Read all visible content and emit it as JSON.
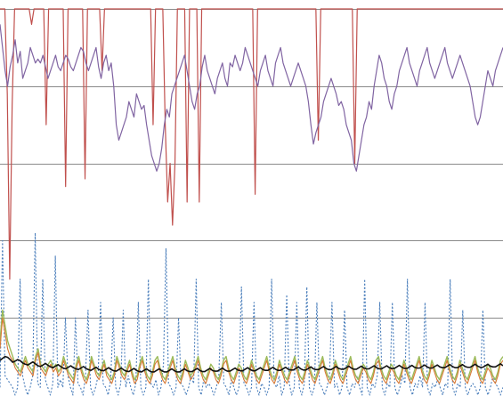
{
  "chart_data": {
    "type": "line",
    "grid": true,
    "x_count": 200,
    "ylim": [
      0,
      100
    ],
    "gridlines_y": [
      100,
      80,
      60,
      40,
      20
    ],
    "series": [
      {
        "key": "red",
        "color": "#c0504d",
        "width": 1.2,
        "dash": "",
        "values": [
          100,
          100,
          100,
          78,
          30,
          75,
          100,
          100,
          100,
          100,
          100,
          100,
          100,
          96,
          100,
          100,
          100,
          100,
          100,
          70,
          100,
          100,
          100,
          100,
          100,
          100,
          100,
          54,
          100,
          100,
          100,
          100,
          100,
          100,
          100,
          56,
          100,
          100,
          100,
          100,
          100,
          100,
          84,
          100,
          100,
          100,
          100,
          100,
          100,
          100,
          100,
          100,
          100,
          100,
          100,
          100,
          100,
          100,
          100,
          100,
          100,
          100,
          100,
          70,
          100,
          100,
          100,
          100,
          70,
          50,
          60,
          44,
          60,
          100,
          100,
          100,
          100,
          50,
          100,
          100,
          100,
          100,
          50,
          100,
          100,
          100,
          100,
          100,
          100,
          100,
          100,
          100,
          100,
          100,
          100,
          100,
          100,
          100,
          100,
          100,
          100,
          100,
          100,
          100,
          100,
          52,
          100,
          100,
          100,
          100,
          100,
          100,
          100,
          100,
          100,
          100,
          100,
          100,
          100,
          100,
          100,
          100,
          100,
          100,
          100,
          100,
          100,
          100,
          100,
          100,
          100,
          66,
          100,
          100,
          100,
          100,
          100,
          100,
          100,
          100,
          100,
          100,
          100,
          100,
          100,
          100,
          60,
          100,
          100,
          100,
          100,
          100,
          100,
          100,
          100,
          100,
          100,
          100,
          100,
          100,
          100,
          100,
          100,
          100,
          100,
          100,
          100,
          100,
          100,
          100,
          100,
          100,
          100,
          100,
          100,
          100,
          100,
          100,
          100,
          100,
          100,
          100,
          100,
          100,
          100,
          100,
          100,
          100,
          100,
          100,
          100,
          100,
          100,
          100,
          100,
          100,
          100,
          100,
          100,
          100,
          100,
          100,
          100,
          100,
          100,
          100,
          100,
          100
        ]
      },
      {
        "key": "purple",
        "color": "#8064a2",
        "width": 1.2,
        "dash": "",
        "values": [
          96,
          90,
          84,
          80,
          85,
          88,
          92,
          86,
          89,
          82,
          84,
          86,
          90,
          88,
          86,
          87,
          86,
          88,
          85,
          82,
          84,
          86,
          88,
          85,
          84,
          86,
          88,
          87,
          85,
          84,
          86,
          88,
          90,
          89,
          86,
          84,
          86,
          88,
          90,
          85,
          82,
          86,
          88,
          84,
          86,
          80,
          70,
          66,
          68,
          70,
          72,
          76,
          74,
          72,
          78,
          76,
          74,
          75,
          70,
          66,
          62,
          60,
          58,
          60,
          64,
          70,
          74,
          72,
          78,
          80,
          82,
          84,
          86,
          88,
          84,
          80,
          76,
          74,
          78,
          80,
          85,
          88,
          84,
          82,
          80,
          78,
          82,
          84,
          86,
          82,
          80,
          86,
          85,
          88,
          86,
          84,
          86,
          90,
          88,
          86,
          84,
          82,
          80,
          84,
          86,
          88,
          84,
          82,
          80,
          86,
          88,
          90,
          86,
          84,
          82,
          80,
          82,
          84,
          86,
          84,
          82,
          80,
          76,
          70,
          65,
          68,
          70,
          72,
          76,
          78,
          80,
          82,
          80,
          78,
          75,
          76,
          74,
          70,
          68,
          66,
          60,
          58,
          62,
          66,
          70,
          72,
          76,
          74,
          80,
          84,
          88,
          86,
          82,
          80,
          76,
          74,
          78,
          80,
          84,
          86,
          88,
          90,
          86,
          84,
          82,
          80,
          84,
          86,
          88,
          90,
          86,
          84,
          82,
          84,
          86,
          88,
          90,
          86,
          84,
          82,
          84,
          86,
          88,
          86,
          84,
          82,
          80,
          76,
          72,
          70,
          72,
          76,
          80,
          84,
          82,
          80,
          84,
          86,
          88,
          90
        ]
      },
      {
        "key": "blue_dotted",
        "color": "#4a7ebb",
        "width": 1.1,
        "dash": "2,2",
        "values": [
          2,
          40,
          5,
          4,
          3,
          2,
          0,
          2,
          30,
          5,
          2,
          0,
          2,
          5,
          42,
          3,
          2,
          30,
          4,
          2,
          0,
          3,
          36,
          2,
          4,
          2,
          20,
          5,
          2,
          0,
          20,
          3,
          2,
          0,
          5,
          22,
          2,
          0,
          2,
          5,
          24,
          3,
          2,
          0,
          4,
          20,
          2,
          0,
          3,
          22,
          2,
          5,
          2,
          0,
          3,
          24,
          2,
          0,
          2,
          30,
          3,
          2,
          4,
          0,
          2,
          8,
          38,
          3,
          2,
          0,
          2,
          20,
          3,
          2,
          0,
          2,
          5,
          3,
          30,
          2,
          0,
          4,
          2,
          3,
          2,
          0,
          2,
          5,
          24,
          3,
          2,
          0,
          4,
          2,
          0,
          2,
          28,
          3,
          2,
          0,
          2,
          24,
          2,
          0,
          3,
          2,
          0,
          2,
          30,
          3,
          2,
          5,
          0,
          2,
          26,
          3,
          0,
          2,
          24,
          2,
          0,
          3,
          28,
          2,
          0,
          2,
          24,
          3,
          2,
          0,
          2,
          5,
          24,
          2,
          3,
          0,
          2,
          22,
          2,
          0,
          3,
          2,
          5,
          2,
          0,
          30,
          2,
          0,
          3,
          2,
          5,
          24,
          2,
          0,
          3,
          2,
          24,
          2,
          0,
          2,
          5,
          3,
          30,
          2,
          0,
          3,
          2,
          5,
          2,
          24,
          2,
          0,
          3,
          2,
          4,
          2,
          0,
          3,
          2,
          30,
          2,
          0,
          3,
          2,
          22,
          2,
          0,
          2,
          3,
          2,
          0,
          2,
          22,
          2,
          0,
          2,
          5,
          3,
          2,
          0,
          2
        ]
      },
      {
        "key": "green",
        "color": "#9bbb59",
        "width": 1.4,
        "dash": "",
        "values": [
          14,
          22,
          18,
          14,
          12,
          10,
          8,
          7,
          6,
          8,
          10,
          8,
          7,
          6,
          10,
          12,
          8,
          7,
          6,
          8,
          9,
          7,
          8,
          6,
          7,
          10,
          8,
          6,
          5,
          4,
          8,
          10,
          7,
          5,
          4,
          6,
          10,
          8,
          6,
          5,
          7,
          9,
          6,
          5,
          4,
          6,
          10,
          8,
          6,
          5,
          7,
          9,
          6,
          4,
          5,
          8,
          10,
          7,
          5,
          4,
          6,
          9,
          10,
          7,
          5,
          4,
          6,
          8,
          10,
          7,
          5,
          4,
          6,
          9,
          7,
          5,
          6,
          8,
          10,
          7,
          5,
          4,
          6,
          8,
          7,
          5,
          4,
          6,
          9,
          10,
          7,
          5,
          4,
          6,
          8,
          7,
          5,
          4,
          6,
          9,
          7,
          5,
          4,
          6,
          8,
          10,
          7,
          5,
          4,
          6,
          9,
          7,
          5,
          4,
          6,
          8,
          10,
          7,
          5,
          4,
          6,
          9,
          7,
          5,
          4,
          6,
          8,
          10,
          7,
          5,
          4,
          6,
          9,
          7,
          5,
          4,
          6,
          8,
          10,
          7,
          5,
          4,
          6,
          8,
          7,
          5,
          4,
          6,
          9,
          10,
          7,
          5,
          4,
          6,
          8,
          7,
          5,
          4,
          6,
          9,
          7,
          5,
          4,
          6,
          8,
          10,
          7,
          5,
          4,
          6,
          9,
          7,
          5,
          4,
          6,
          8,
          10,
          7,
          5,
          4,
          6,
          9,
          7,
          5,
          4,
          6,
          8,
          10,
          7,
          5,
          4,
          6,
          8,
          7,
          5,
          4,
          6,
          9,
          10
        ]
      },
      {
        "key": "orange",
        "color": "#d97a36",
        "width": 1.1,
        "dash": "",
        "values": [
          12,
          20,
          16,
          12,
          10,
          9,
          7,
          6,
          5,
          7,
          9,
          7,
          6,
          5,
          9,
          11,
          7,
          6,
          5,
          7,
          8,
          6,
          7,
          5,
          6,
          9,
          7,
          5,
          4,
          3,
          7,
          9,
          6,
          4,
          3,
          5,
          9,
          7,
          5,
          4,
          6,
          8,
          5,
          4,
          3,
          5,
          9,
          7,
          5,
          4,
          6,
          8,
          5,
          3,
          4,
          7,
          9,
          6,
          4,
          3,
          5,
          8,
          9,
          6,
          4,
          3,
          5,
          7,
          9,
          6,
          4,
          3,
          5,
          8,
          6,
          4,
          5,
          7,
          9,
          6,
          4,
          3,
          5,
          7,
          6,
          4,
          3,
          5,
          8,
          9,
          6,
          4,
          3,
          5,
          7,
          6,
          4,
          3,
          5,
          8,
          6,
          4,
          3,
          5,
          7,
          9,
          6,
          4,
          3,
          5,
          8,
          6,
          4,
          3,
          5,
          7,
          9,
          6,
          4,
          3,
          5,
          8,
          6,
          4,
          3,
          5,
          7,
          9,
          6,
          4,
          3,
          5,
          8,
          6,
          4,
          3,
          5,
          7,
          9,
          6,
          4,
          3,
          5,
          7,
          6,
          4,
          3,
          5,
          8,
          9,
          6,
          4,
          3,
          5,
          7,
          6,
          4,
          3,
          5,
          8,
          6,
          4,
          3,
          5,
          7,
          9,
          6,
          4,
          3,
          5,
          8,
          6,
          4,
          3,
          5,
          7,
          9,
          6,
          4,
          3,
          5,
          8,
          6,
          4,
          3,
          5,
          7,
          9,
          6,
          4,
          3,
          5,
          7,
          6,
          4,
          3,
          5,
          8,
          9
        ]
      },
      {
        "key": "black",
        "color": "#111111",
        "width": 1.6,
        "dash": "",
        "values": [
          9,
          9.5,
          10,
          9.8,
          9.2,
          8.5,
          8.8,
          9.2,
          8.9,
          8.3,
          8,
          7.8,
          8.2,
          8.6,
          8.1,
          7.6,
          7.4,
          7.8,
          8.2,
          7.7,
          7.3,
          7.1,
          7.5,
          7.9,
          7.4,
          7,
          6.8,
          7.2,
          7.6,
          7.1,
          6.8,
          6.6,
          7,
          7.4,
          6.9,
          6.6,
          6.4,
          6.8,
          7.2,
          6.7,
          6.4,
          6.3,
          6.7,
          7.1,
          6.6,
          6.3,
          6.2,
          6.6,
          7,
          6.5,
          6.2,
          6.1,
          6.5,
          6.9,
          6.4,
          6.1,
          6,
          6.4,
          6.8,
          6.3,
          6,
          6,
          6.4,
          6.8,
          6.3,
          6,
          6,
          6.4,
          6.8,
          6.3,
          6,
          6,
          6.4,
          6.8,
          6.3,
          6.1,
          6.1,
          6.5,
          6.9,
          6.4,
          6.1,
          6.1,
          6.5,
          6.9,
          6.4,
          6.2,
          6.2,
          6.6,
          7,
          6.5,
          6.2,
          6.2,
          6.6,
          7,
          6.5,
          6.3,
          6.3,
          6.7,
          7.1,
          6.6,
          6.3,
          6.3,
          6.7,
          7.1,
          6.6,
          6.4,
          6.4,
          6.8,
          7.2,
          6.7,
          6.4,
          6.4,
          6.8,
          7.2,
          6.7,
          6.5,
          6.5,
          6.9,
          7.3,
          6.8,
          6.5,
          6.5,
          6.9,
          7.3,
          6.8,
          6.6,
          6.6,
          7,
          7.4,
          6.9,
          6.6,
          6.6,
          7,
          7.4,
          6.9,
          6.7,
          6.7,
          7.1,
          7.5,
          7,
          6.7,
          6.7,
          7.1,
          7.5,
          7,
          6.8,
          6.8,
          7.2,
          7.6,
          7.1,
          6.8,
          6.8,
          7.2,
          7.6,
          7.1,
          6.9,
          6.9,
          7.3,
          7.7,
          7.2,
          6.9,
          6.9,
          7.3,
          7.7,
          7.2,
          7,
          7,
          7.4,
          7.8,
          7.3,
          7,
          7,
          7.4,
          7.8,
          7.3,
          7.1,
          7.1,
          7.5,
          7.9,
          7.4,
          7.1,
          7.1,
          7.5,
          7.9,
          7.4,
          7.2,
          7.2,
          7.6,
          8,
          7.5,
          7.2,
          7.2,
          7.6,
          8,
          7.5,
          7.3,
          7.3,
          7.7,
          8.1,
          7.6
        ]
      }
    ]
  }
}
